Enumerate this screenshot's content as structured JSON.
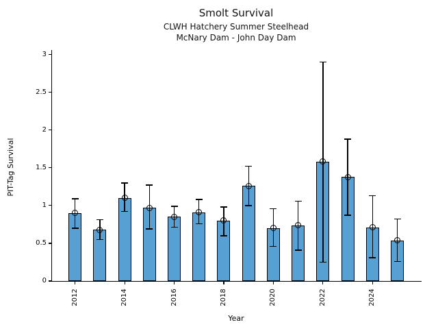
{
  "chart_data": {
    "type": "bar",
    "title": "Smolt Survival",
    "subtitle_line1": "CLWH Hatchery Summer Steelhead",
    "subtitle_line2": "McNary Dam - John Day Dam",
    "xlabel": "Year",
    "ylabel": "PIT-Tag Survival",
    "years": [
      2012,
      2013,
      2014,
      2015,
      2016,
      2017,
      2018,
      2019,
      2020,
      2021,
      2022,
      2023,
      2024,
      2025
    ],
    "values": [
      0.9,
      0.68,
      1.1,
      0.97,
      0.85,
      0.91,
      0.8,
      1.26,
      0.7,
      0.74,
      1.58,
      1.38,
      0.71,
      0.54
    ],
    "error_low": [
      0.7,
      0.55,
      0.92,
      0.69,
      0.71,
      0.76,
      0.6,
      1.0,
      0.46,
      0.41,
      0.25,
      0.87,
      0.31,
      0.26
    ],
    "error_high": [
      1.09,
      0.81,
      1.3,
      1.27,
      0.99,
      1.08,
      0.98,
      1.52,
      0.96,
      1.06,
      2.9,
      1.88,
      1.13,
      0.82
    ],
    "yticks": [
      0,
      0.5,
      1,
      1.5,
      2,
      2.5,
      3
    ],
    "ytick_labels": [
      "0",
      "0.5",
      "1",
      "1.5",
      "2",
      "2.5",
      "3"
    ],
    "xticks": [
      2012,
      2014,
      2016,
      2018,
      2020,
      2022,
      2024
    ],
    "xtick_labels": [
      "2012",
      "2014",
      "2016",
      "2018",
      "2020",
      "2022",
      "2024"
    ],
    "ylim": [
      0,
      3.06
    ],
    "xlim": [
      2011.07,
      2025.98
    ],
    "grid": false,
    "legend": null,
    "marker": "open-circle",
    "bar_color": "#56a0d3",
    "bar_edge_color": "#000000",
    "errorbar_color": "#000000"
  }
}
